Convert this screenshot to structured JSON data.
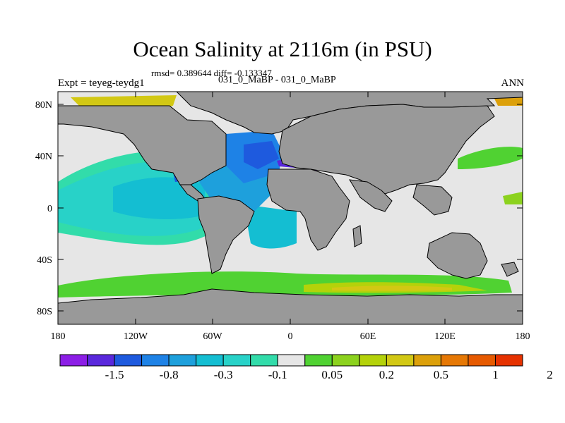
{
  "title": "Ocean Salinity at 2116m (in PSU)",
  "stats": "rmsd= 0.389644 diff= -0.133347",
  "experiment": "Expt = teyeg-teydg1",
  "runs": "031_0_MaBP - 031_0_MaBP",
  "season": "ANN",
  "axes": {
    "lat_ticks": [
      "80N",
      "40N",
      "0",
      "40S",
      "80S"
    ],
    "lon_ticks": [
      "180",
      "120W",
      "60W",
      "0",
      "60E",
      "120E",
      "180"
    ]
  },
  "colorbar": {
    "colors": [
      "#8c1ee6",
      "#5a28dc",
      "#1e5ade",
      "#1e82e6",
      "#1ea0dc",
      "#14bed2",
      "#28d2c8",
      "#32dcaa",
      "#e6e6e6",
      "#50d232",
      "#8cd21e",
      "#b4d20a",
      "#d2c814",
      "#dca00a",
      "#e67805",
      "#e65a00",
      "#e63200"
    ],
    "labels": [
      "-1.5",
      "-0.8",
      "-0.3",
      "-0.1",
      "0.05",
      "0.2",
      "0.5",
      "1",
      "2"
    ]
  },
  "palette": {
    "land": "#999999",
    "neutral": "#e6e6e6"
  }
}
